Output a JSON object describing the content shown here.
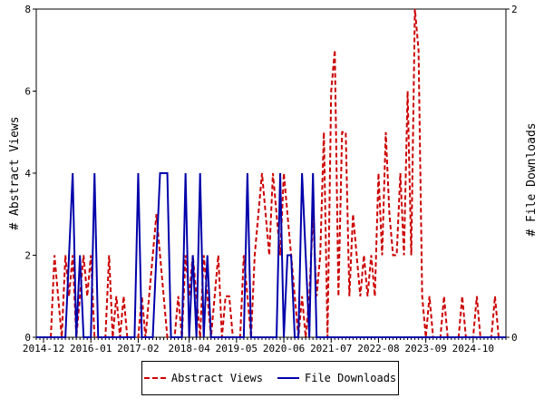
{
  "chart_data": {
    "type": "line",
    "title": "",
    "ylabel_left": "# Abstract Views",
    "ylabel_right": "# File Downloads",
    "ylim_left": [
      0,
      8
    ],
    "ylim_right": [
      0,
      2
    ],
    "yticks_left": [
      0,
      2,
      4,
      6,
      8
    ],
    "yticks_right": [
      0,
      2
    ],
    "xlim": [
      "2014-10",
      "2025-07"
    ],
    "xtick_labels": [
      "2014-12",
      "2016-01",
      "2017-02",
      "2018-04",
      "2019-05",
      "2020-06",
      "2021-07",
      "2022-08",
      "2023-09",
      "2024-10"
    ],
    "legend_placement": "bottom",
    "grid": false,
    "colors": {
      "abstract_views": "#cc0000",
      "file_downloads": "#0000aa"
    },
    "series": [
      {
        "name": "Abstract Views",
        "axis": "left",
        "style": "dashed",
        "x": [
          "2015-03",
          "2015-04",
          "2015-05",
          "2015-06",
          "2015-07",
          "2015-08",
          "2015-09",
          "2015-10",
          "2015-11",
          "2015-12",
          "2016-01",
          "2016-02",
          "2016-06",
          "2016-07",
          "2016-08",
          "2016-09",
          "2016-10",
          "2016-11",
          "2017-03",
          "2017-04",
          "2017-05",
          "2017-06",
          "2017-07",
          "2017-08",
          "2017-09",
          "2018-01",
          "2018-02",
          "2018-03",
          "2018-04",
          "2018-05",
          "2018-06",
          "2018-08",
          "2018-09",
          "2018-10",
          "2018-11",
          "2018-12",
          "2019-01",
          "2019-02",
          "2019-03",
          "2019-04",
          "2019-07",
          "2019-08",
          "2019-09",
          "2019-10",
          "2019-11",
          "2019-12",
          "2020-01",
          "2020-02",
          "2020-03",
          "2020-04",
          "2020-05",
          "2020-06",
          "2020-07",
          "2020-08",
          "2020-09",
          "2020-10",
          "2020-11",
          "2020-12",
          "2021-01",
          "2021-02",
          "2021-03",
          "2021-04",
          "2021-05",
          "2021-06",
          "2021-07",
          "2021-08",
          "2021-09",
          "2021-10",
          "2021-11",
          "2021-12",
          "2022-01",
          "2022-02",
          "2022-03",
          "2022-04",
          "2022-05",
          "2022-06",
          "2022-07",
          "2022-08",
          "2022-09",
          "2022-10",
          "2022-11",
          "2022-12",
          "2023-01",
          "2023-02",
          "2023-03",
          "2023-04",
          "2023-05",
          "2023-06",
          "2023-07",
          "2023-08",
          "2023-09",
          "2023-10",
          "2024-01",
          "2024-02",
          "2024-06",
          "2024-07",
          "2024-10",
          "2024-11",
          "2025-03",
          "2025-04"
        ],
        "values": [
          2,
          1,
          0,
          2,
          1,
          2,
          0,
          1,
          2,
          1,
          2,
          0,
          2,
          0,
          1,
          0,
          1,
          0,
          1,
          0,
          1,
          2,
          3,
          2,
          1,
          1,
          0,
          2,
          1,
          2,
          1,
          2,
          1,
          0,
          1,
          2,
          0,
          1,
          1,
          0,
          2,
          1,
          0,
          2,
          3,
          4,
          3,
          2,
          4,
          3,
          2,
          4,
          3,
          2,
          1,
          0,
          1,
          0,
          1,
          3,
          1,
          2,
          5,
          0,
          6,
          7,
          1,
          5,
          5,
          1,
          3,
          2,
          1,
          2,
          1,
          2,
          1,
          4,
          2,
          5,
          3,
          2,
          2,
          4,
          2,
          6,
          2,
          8,
          7,
          1,
          0,
          1,
          0,
          1,
          0,
          1,
          0,
          1,
          0,
          1
        ]
      },
      {
        "name": "File Downloads",
        "axis": "right",
        "style": "solid",
        "x": [
          "2015-07",
          "2015-08",
          "2015-10",
          "2016-02",
          "2017-02",
          "2017-07",
          "2017-08",
          "2017-09",
          "2017-10",
          "2018-03",
          "2018-05",
          "2018-07",
          "2018-09",
          "2019-08",
          "2020-05",
          "2020-07",
          "2020-08",
          "2020-11",
          "2020-12",
          "2021-02"
        ],
        "values": [
          0.5,
          1,
          0.5,
          1,
          1,
          0.5,
          1,
          1,
          1,
          1,
          0.5,
          1,
          0.5,
          1,
          1,
          0.5,
          0.5,
          1,
          0.5,
          1
        ]
      }
    ]
  }
}
